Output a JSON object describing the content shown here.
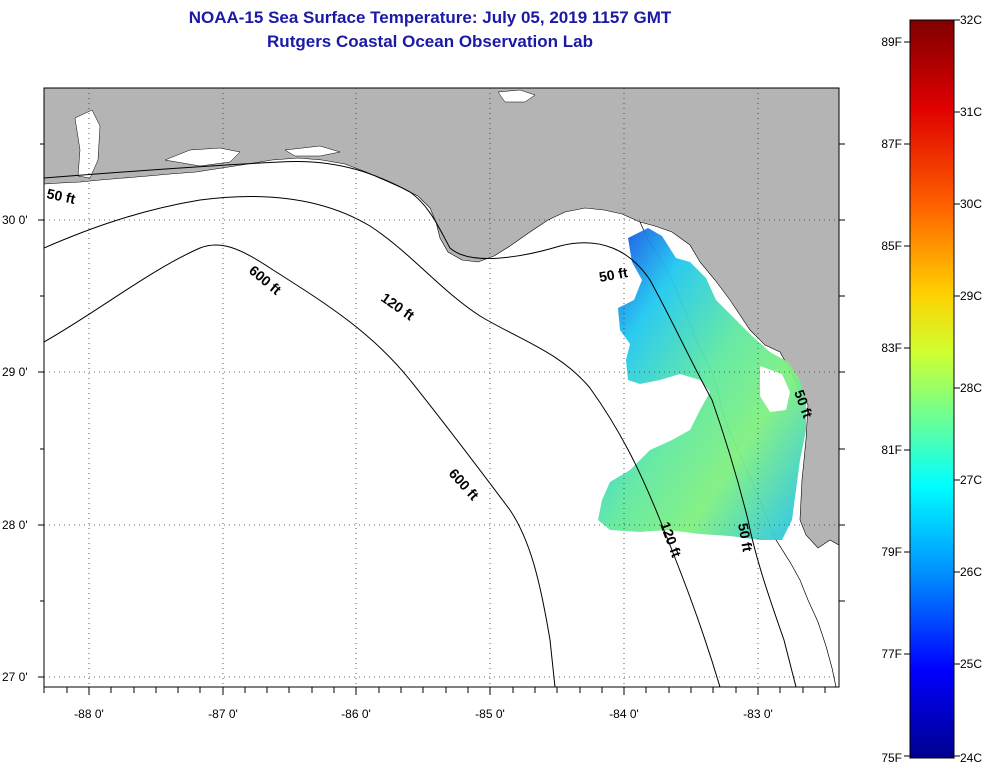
{
  "title": {
    "line1": "NOAA-15 Sea Surface Temperature:  July 05, 2019 1157 GMT",
    "line2": "Rutgers Coastal Ocean Observation Lab"
  },
  "map": {
    "lon_labels": [
      "-88 0'",
      "-87 0'",
      "-86 0'",
      "-85 0'",
      "-84 0'",
      "-83 0'"
    ],
    "lat_labels": [
      "30 0'",
      "29 0'",
      "28 0'",
      "27 0'"
    ],
    "contour_labels": [
      "50 ft",
      "600 ft",
      "120 ft",
      "50 ft",
      "600 ft",
      "120 ft",
      "50 ft",
      "50 ft"
    ],
    "land_color": "#b4b4b4",
    "water_color": "#ffffff"
  },
  "colorbar": {
    "f_labels": [
      "89F",
      "87F",
      "85F",
      "83F",
      "81F",
      "79F",
      "77F",
      "75F"
    ],
    "c_labels": [
      "32C",
      "31C",
      "30C",
      "29C",
      "28C",
      "27C",
      "26C",
      "25C",
      "24C"
    ],
    "colors": [
      "#7f0000",
      "#ff0000",
      "#ff8000",
      "#ffff00",
      "#80ff80",
      "#00ffff",
      "#0080ff",
      "#0000ff",
      "#00008f"
    ]
  }
}
